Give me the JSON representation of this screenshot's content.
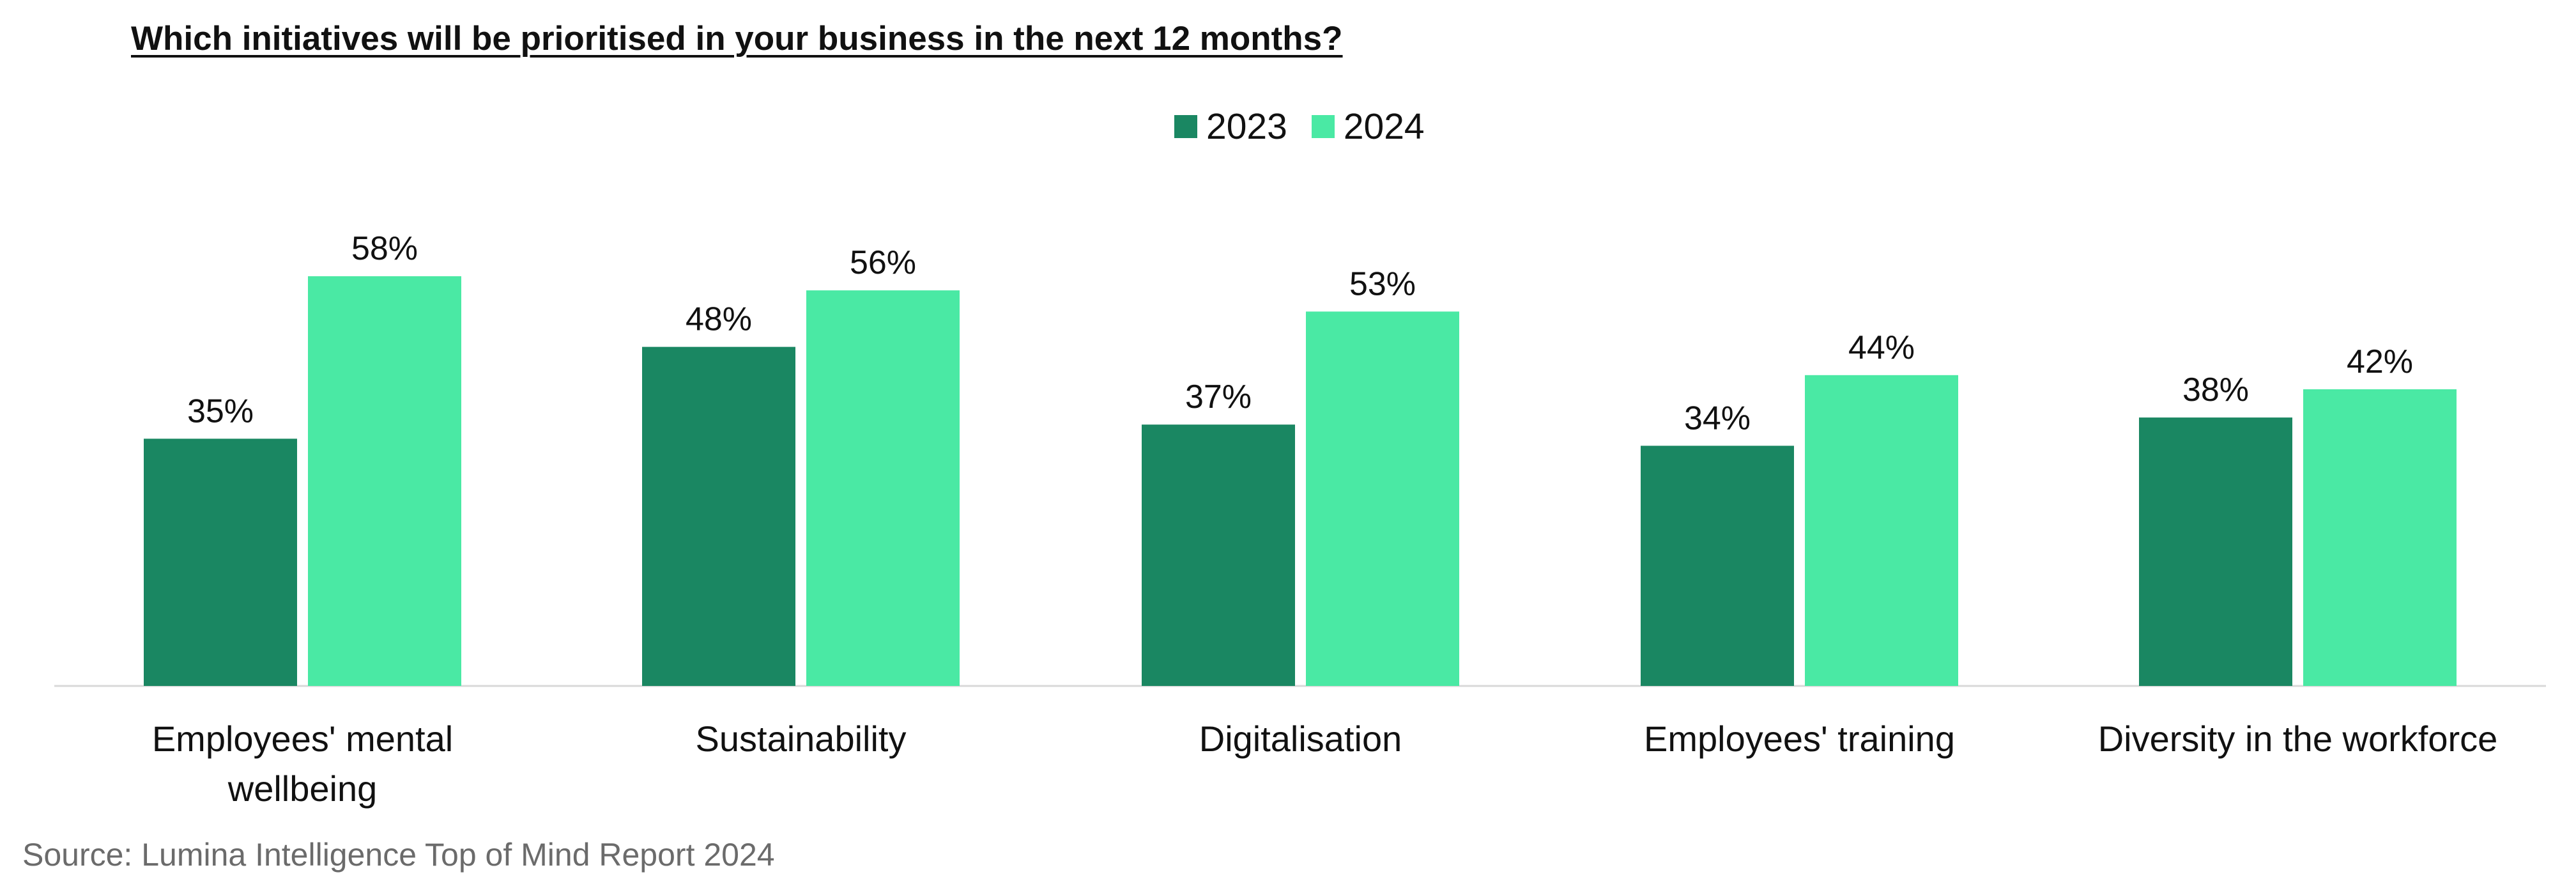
{
  "chart_data": {
    "type": "bar",
    "title": "Which initiatives will be prioritised in your business in the next 12 months?",
    "xlabel": "",
    "ylabel": "",
    "ylim": [
      0,
      100
    ],
    "grid": false,
    "legend_position": "top-center",
    "categories": [
      "Employees' mental wellbeing",
      "Sustainability",
      "Digitalisation",
      "Employees' training",
      "Diversity in the workforce"
    ],
    "series": [
      {
        "name": "2023",
        "color": "#1a8762",
        "values": [
          35,
          48,
          37,
          34,
          38
        ],
        "labels": [
          "35%",
          "48%",
          "37%",
          "34%",
          "38%"
        ]
      },
      {
        "name": "2024",
        "color": "#4ae9a4",
        "values": [
          58,
          56,
          53,
          44,
          42
        ],
        "labels": [
          "58%",
          "56%",
          "53%",
          "44%",
          "42%"
        ]
      }
    ]
  },
  "source": "Source: Lumina Intelligence Top of Mind Report 2024",
  "colors": {
    "baseline": "#d9d9d9",
    "text": "#111111",
    "source_text": "#6b6b6b"
  }
}
